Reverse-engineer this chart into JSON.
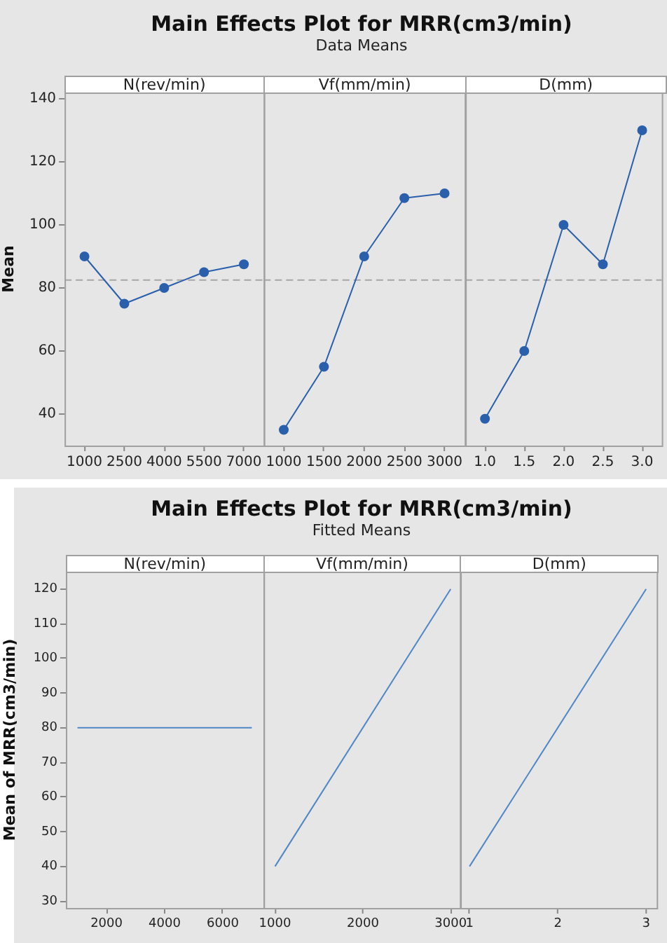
{
  "chart_data": [
    {
      "type": "other",
      "title": "Main Effects Plot for MRR(cm3/min)",
      "subtitle": "Data Means"
    },
    {
      "type": "line",
      "title": "N(rev/min)",
      "ylabel": "Mean",
      "categories": [
        "1000",
        "2500",
        "4000",
        "5500",
        "7000"
      ],
      "values": [
        90,
        75,
        80,
        85,
        87.5
      ],
      "color": "#2a5fab",
      "marker": "circle",
      "ylim": [
        30,
        142
      ],
      "yticks": [
        40,
        60,
        80,
        100,
        120,
        140
      ],
      "ref_lines": [
        {
          "axis": "y",
          "value": 82.5,
          "line_style": "dashed",
          "color": "#a6a6a6"
        }
      ]
    },
    {
      "type": "line",
      "title": "Vf(mm/min)",
      "categories": [
        "1000",
        "1500",
        "2000",
        "2500",
        "3000"
      ],
      "values": [
        35,
        55,
        90,
        108.5,
        110
      ],
      "color": "#2a5fab",
      "marker": "circle",
      "ylim": [
        30,
        142
      ],
      "yticks": [
        40,
        60,
        80,
        100,
        120,
        140
      ],
      "tick_labels": "x",
      "ref_lines": [
        {
          "axis": "y",
          "value": 82.5,
          "line_style": "dashed",
          "color": "#a6a6a6"
        }
      ]
    },
    {
      "type": "line",
      "title": "D(mm)",
      "categories": [
        "1.0",
        "1.5",
        "2.0",
        "2.5",
        "3.0"
      ],
      "values": [
        38.5,
        60,
        100,
        87.5,
        130
      ],
      "color": "#2a5fab",
      "marker": "circle",
      "ylim": [
        30,
        142
      ],
      "yticks": [
        40,
        60,
        80,
        100,
        120,
        140
      ],
      "tick_labels": "x",
      "ref_lines": [
        {
          "axis": "y",
          "value": 82.5,
          "line_style": "dashed",
          "color": "#a6a6a6"
        }
      ]
    },
    {
      "type": "other",
      "title": "Main Effects Plot for MRR(cm3/min)",
      "subtitle": "Fitted Means"
    },
    {
      "type": "line",
      "title": "N(rev/min)",
      "ylabel": "Mean of MRR(cm3/min)",
      "x": [
        1000,
        7000
      ],
      "values": [
        80,
        80
      ],
      "color": "#4f86c6",
      "xlim": [
        600,
        7400
      ],
      "xticks": [
        2000,
        4000,
        6000
      ],
      "ylim": [
        28,
        125
      ],
      "yticks": [
        30,
        40,
        50,
        60,
        70,
        80,
        90,
        100,
        110,
        120
      ]
    },
    {
      "type": "line",
      "title": "Vf(mm/min)",
      "x": [
        1000,
        3000
      ],
      "values": [
        40,
        120
      ],
      "color": "#4f86c6",
      "xlim": [
        870,
        3110
      ],
      "xticks": [
        1000,
        2000,
        3000
      ],
      "ylim": [
        28,
        125
      ],
      "yticks": [
        30,
        40,
        50,
        60,
        70,
        80,
        90,
        100,
        110,
        120
      ],
      "tick_labels": "x"
    },
    {
      "type": "line",
      "title": "D(mm)",
      "x": [
        1,
        3
      ],
      "values": [
        40,
        120
      ],
      "color": "#4f86c6",
      "xlim": [
        0.89,
        3.12
      ],
      "xticks": [
        1,
        2,
        3
      ],
      "ylim": [
        28,
        125
      ],
      "yticks": [
        30,
        40,
        50,
        60,
        70,
        80,
        90,
        100,
        110,
        120
      ],
      "tick_labels": "x"
    }
  ]
}
